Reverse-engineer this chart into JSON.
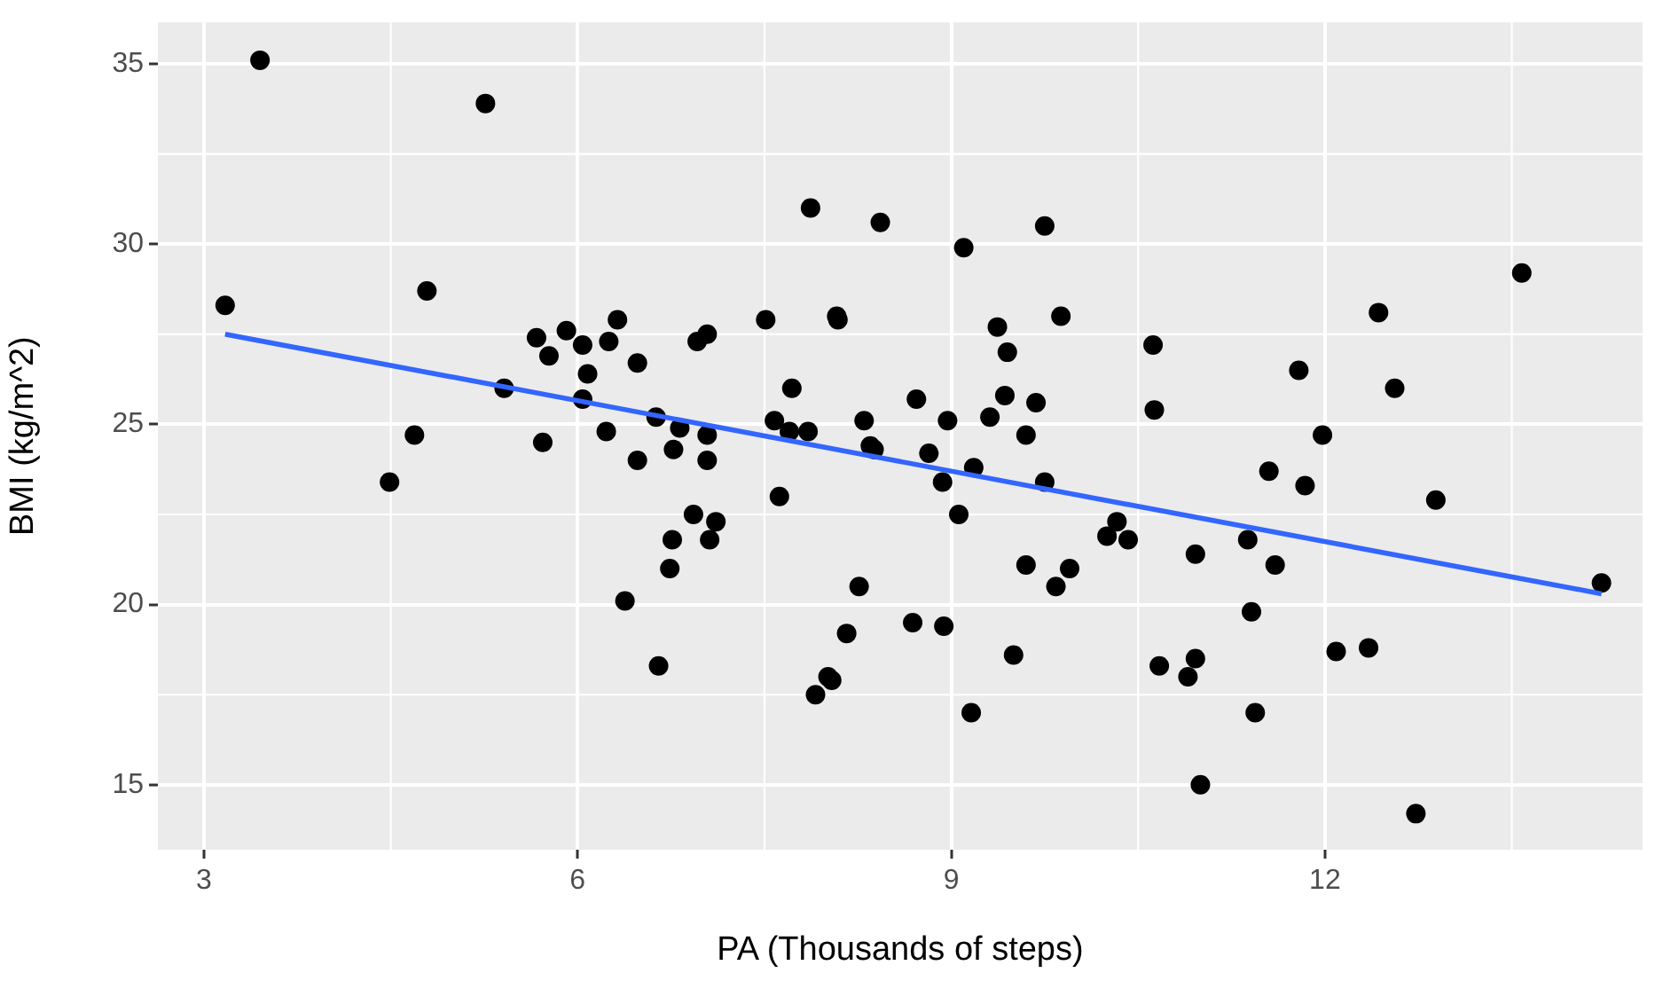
{
  "chart_data": {
    "type": "scatter",
    "xlabel": "PA (Thousands of steps)",
    "ylabel": "BMI (kg/m^2)",
    "xlim": [
      2.63,
      14.55
    ],
    "ylim": [
      13.2,
      36.15
    ],
    "xticks": [
      3,
      6,
      9,
      12
    ],
    "yticks": [
      15,
      20,
      25,
      30,
      35
    ],
    "grid": true,
    "legend": false,
    "series": [
      {
        "color": "#000000",
        "marker": "circle",
        "x": [
          3.17,
          3.45,
          4.49,
          4.69,
          4.79,
          5.26,
          5.41,
          5.67,
          5.72,
          5.77,
          5.91,
          6.04,
          6.04,
          6.08,
          6.23,
          6.25,
          6.32,
          6.38,
          6.48,
          6.48,
          6.63,
          6.65,
          6.74,
          6.76,
          6.77,
          6.82,
          6.93,
          6.96,
          7.04,
          7.04,
          7.04,
          7.06,
          7.11,
          7.51,
          7.58,
          7.62,
          7.7,
          7.72,
          7.85,
          7.87,
          7.91,
          8.01,
          8.04,
          8.08,
          8.09,
          8.16,
          8.26,
          8.3,
          8.35,
          8.38,
          8.43,
          8.69,
          8.72,
          8.82,
          8.93,
          8.94,
          8.97,
          9.06,
          9.1,
          9.16,
          9.18,
          9.31,
          9.37,
          9.43,
          9.45,
          9.5,
          9.6,
          9.6,
          9.68,
          9.75,
          9.75,
          9.84,
          9.88,
          9.95,
          10.25,
          10.33,
          10.42,
          10.62,
          10.63,
          10.67,
          10.9,
          10.96,
          10.96,
          11.0,
          11.38,
          11.41,
          11.44,
          11.55,
          11.6,
          11.79,
          11.84,
          11.98,
          12.09,
          12.35,
          12.43,
          12.56,
          12.73,
          12.89,
          13.58,
          14.22
        ],
        "values": [
          28.3,
          35.1,
          23.4,
          24.7,
          28.7,
          33.9,
          26.0,
          27.4,
          24.5,
          26.9,
          27.6,
          27.2,
          25.7,
          26.4,
          24.8,
          27.3,
          27.9,
          20.1,
          26.7,
          24.0,
          25.2,
          18.3,
          21.0,
          21.8,
          24.3,
          24.9,
          22.5,
          27.3,
          27.5,
          24.7,
          24.0,
          21.8,
          22.3,
          27.9,
          25.1,
          23.0,
          24.8,
          26.0,
          24.8,
          31.0,
          17.5,
          18.0,
          17.9,
          28.0,
          27.9,
          19.2,
          20.5,
          25.1,
          24.4,
          24.3,
          30.6,
          19.5,
          25.7,
          24.2,
          23.4,
          19.4,
          25.1,
          22.5,
          29.9,
          17.0,
          23.8,
          25.2,
          27.7,
          25.8,
          27.0,
          18.6,
          24.7,
          21.1,
          25.6,
          23.4,
          30.5,
          20.5,
          28.0,
          21.0,
          21.9,
          22.3,
          21.8,
          27.2,
          25.4,
          18.3,
          18.0,
          18.5,
          21.4,
          15.0,
          21.8,
          19.8,
          17.0,
          23.7,
          21.1,
          26.5,
          23.3,
          24.7,
          18.7,
          18.8,
          28.1,
          26.0,
          14.2,
          22.9,
          29.2,
          20.6
        ]
      },
      {
        "type": "line",
        "color": "#3366ff",
        "marker": "none",
        "x": [
          3.17,
          14.22
        ],
        "values": [
          27.5,
          20.3
        ]
      }
    ]
  }
}
